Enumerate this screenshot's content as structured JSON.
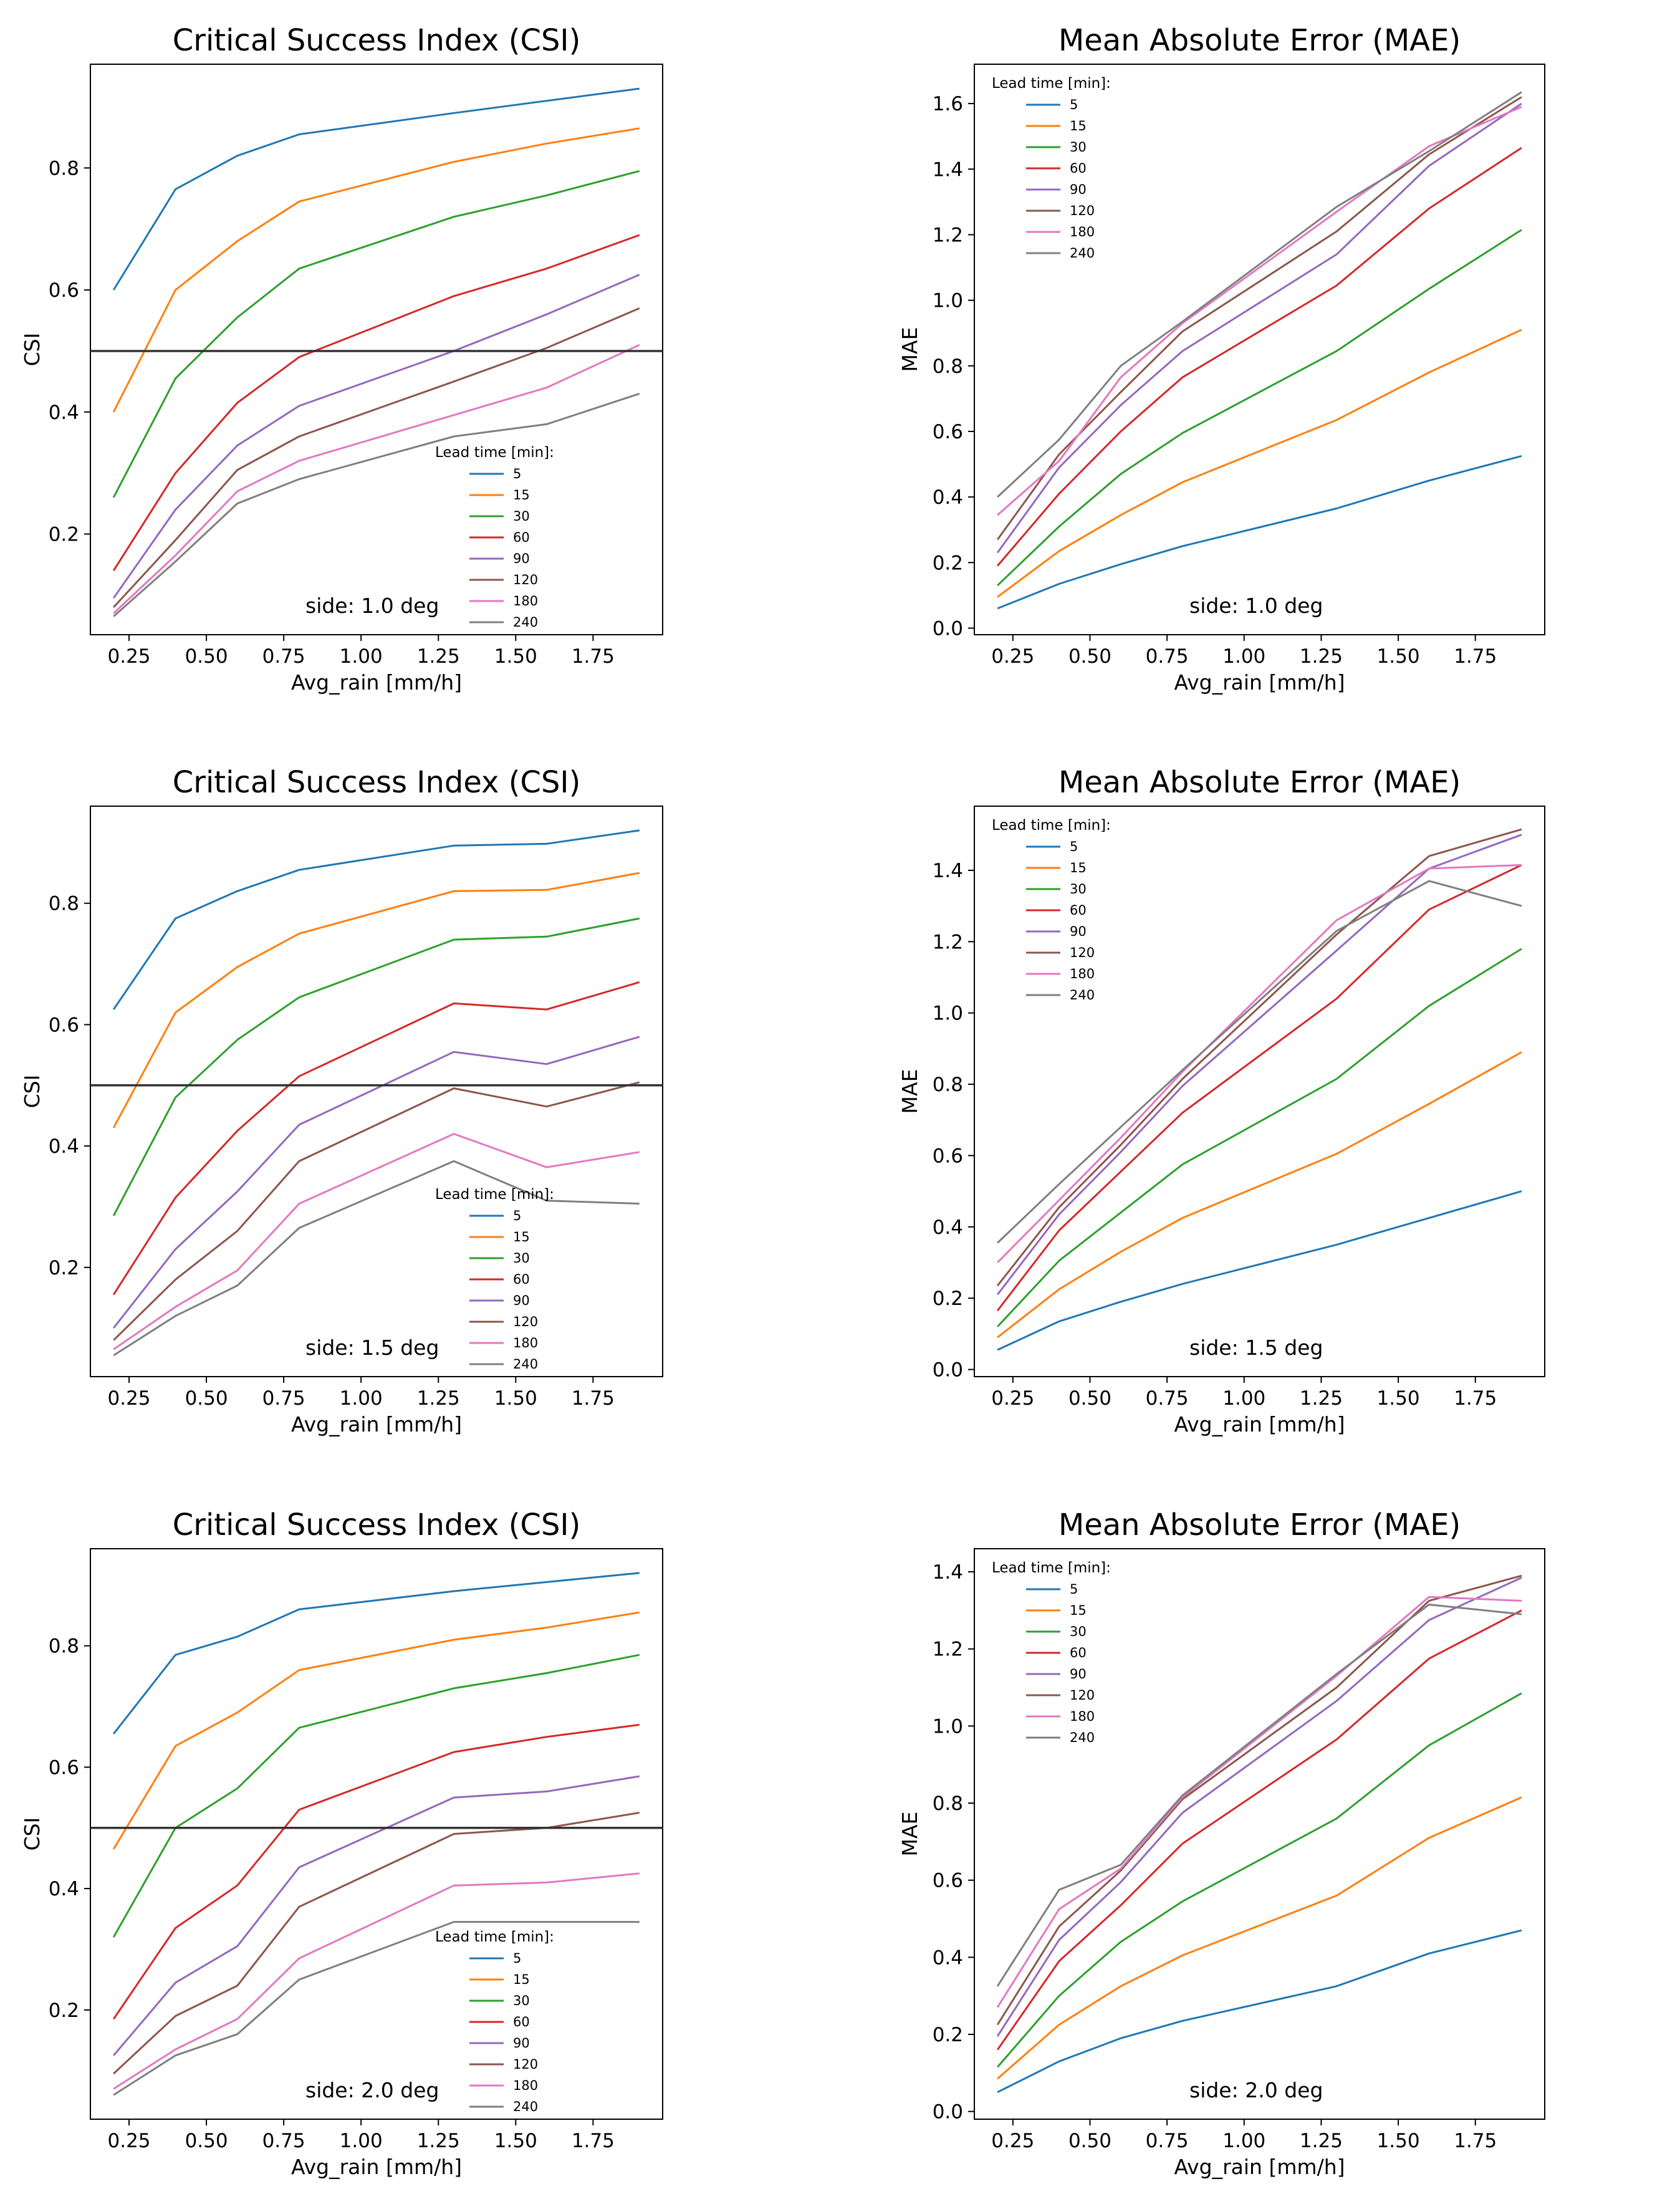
{
  "colors": {
    "series": [
      "#1f77b4",
      "#ff7f0e",
      "#2ca02c",
      "#d62728",
      "#9467bd",
      "#8c564b",
      "#e377c2",
      "#7f7f7f"
    ],
    "axis": "#000000",
    "threshold": "#333333"
  },
  "chart_data": [
    {
      "type": "line",
      "title": "Critical Success Index (CSI)",
      "xlabel": "Avg_rain [mm/h]",
      "ylabel": "CSI",
      "xlim": [
        0.125,
        1.975
      ],
      "ylim": [
        0.035,
        0.97
      ],
      "xticks": [
        0.25,
        0.5,
        0.75,
        1.0,
        1.25,
        1.5,
        1.75
      ],
      "xtick_labels": [
        "0.25",
        "0.50",
        "0.75",
        "1.00",
        "1.25",
        "1.50",
        "1.75"
      ],
      "yticks": [
        0.2,
        0.4,
        0.6,
        0.8
      ],
      "ytick_labels": [
        "0.2",
        "0.4",
        "0.6",
        "0.8"
      ],
      "threshold": 0.5,
      "legend_title": "Lead time [min]:",
      "legend_position": "lower-right",
      "annotation": "side: 1.0 deg",
      "x": [
        0.2,
        0.4,
        0.6,
        0.8,
        1.3,
        1.6,
        1.9
      ],
      "series": [
        {
          "name": "5",
          "values": [
            0.6,
            0.765,
            0.82,
            0.855,
            0.89,
            0.91,
            0.93
          ]
        },
        {
          "name": "15",
          "values": [
            0.4,
            0.6,
            0.68,
            0.745,
            0.81,
            0.84,
            0.865
          ]
        },
        {
          "name": "30",
          "values": [
            0.26,
            0.455,
            0.555,
            0.635,
            0.72,
            0.755,
            0.795
          ]
        },
        {
          "name": "60",
          "values": [
            0.14,
            0.3,
            0.415,
            0.49,
            0.59,
            0.635,
            0.69
          ]
        },
        {
          "name": "90",
          "values": [
            0.095,
            0.24,
            0.345,
            0.41,
            0.5,
            0.56,
            0.625
          ]
        },
        {
          "name": "120",
          "values": [
            0.08,
            0.19,
            0.305,
            0.36,
            0.45,
            0.505,
            0.57
          ]
        },
        {
          "name": "180",
          "values": [
            0.07,
            0.165,
            0.27,
            0.32,
            0.395,
            0.44,
            0.51
          ]
        },
        {
          "name": "240",
          "values": [
            0.065,
            0.155,
            0.25,
            0.29,
            0.36,
            0.38,
            0.43
          ]
        }
      ]
    },
    {
      "type": "line",
      "title": "Mean Absolute Error (MAE)",
      "xlabel": "Avg_rain [mm/h]",
      "ylabel": "MAE",
      "xlim": [
        0.125,
        1.975
      ],
      "ylim": [
        -0.02,
        1.72
      ],
      "xticks": [
        0.25,
        0.5,
        0.75,
        1.0,
        1.25,
        1.5,
        1.75
      ],
      "xtick_labels": [
        "0.25",
        "0.50",
        "0.75",
        "1.00",
        "1.25",
        "1.50",
        "1.75"
      ],
      "yticks": [
        0.0,
        0.2,
        0.4,
        0.6,
        0.8,
        1.0,
        1.2,
        1.4,
        1.6
      ],
      "ytick_labels": [
        "0.0",
        "0.2",
        "0.4",
        "0.6",
        "0.8",
        "1.0",
        "1.2",
        "1.4",
        "1.6"
      ],
      "legend_title": "Lead time [min]:",
      "legend_position": "upper-left",
      "annotation": "side: 1.0 deg",
      "x": [
        0.2,
        0.4,
        0.6,
        0.8,
        1.3,
        1.6,
        1.9
      ],
      "series": [
        {
          "name": "5",
          "values": [
            0.06,
            0.135,
            0.195,
            0.25,
            0.365,
            0.45,
            0.525
          ]
        },
        {
          "name": "15",
          "values": [
            0.095,
            0.235,
            0.345,
            0.445,
            0.635,
            0.78,
            0.91
          ]
        },
        {
          "name": "30",
          "values": [
            0.13,
            0.31,
            0.47,
            0.595,
            0.845,
            1.035,
            1.215
          ]
        },
        {
          "name": "60",
          "values": [
            0.19,
            0.41,
            0.6,
            0.765,
            1.045,
            1.28,
            1.465
          ]
        },
        {
          "name": "90",
          "values": [
            0.23,
            0.49,
            0.68,
            0.845,
            1.14,
            1.41,
            1.6
          ]
        },
        {
          "name": "120",
          "values": [
            0.27,
            0.53,
            0.72,
            0.905,
            1.21,
            1.445,
            1.62
          ]
        },
        {
          "name": "180",
          "values": [
            0.345,
            0.51,
            0.765,
            0.93,
            1.27,
            1.47,
            1.59
          ]
        },
        {
          "name": "240",
          "values": [
            0.4,
            0.575,
            0.8,
            0.935,
            1.285,
            1.455,
            1.635
          ]
        }
      ]
    },
    {
      "type": "line",
      "title": "Critical Success Index (CSI)",
      "xlabel": "Avg_rain [mm/h]",
      "ylabel": "CSI",
      "xlim": [
        0.125,
        1.975
      ],
      "ylim": [
        0.02,
        0.96
      ],
      "xticks": [
        0.25,
        0.5,
        0.75,
        1.0,
        1.25,
        1.5,
        1.75
      ],
      "xtick_labels": [
        "0.25",
        "0.50",
        "0.75",
        "1.00",
        "1.25",
        "1.50",
        "1.75"
      ],
      "yticks": [
        0.2,
        0.4,
        0.6,
        0.8
      ],
      "ytick_labels": [
        "0.2",
        "0.4",
        "0.6",
        "0.8"
      ],
      "threshold": 0.5,
      "legend_title": "Lead time [min]:",
      "legend_position": "lower-right",
      "annotation": "side: 1.5 deg",
      "x": [
        0.2,
        0.4,
        0.6,
        0.8,
        1.3,
        1.6,
        1.9
      ],
      "series": [
        {
          "name": "5",
          "values": [
            0.625,
            0.775,
            0.82,
            0.855,
            0.895,
            0.898,
            0.92
          ]
        },
        {
          "name": "15",
          "values": [
            0.43,
            0.62,
            0.695,
            0.75,
            0.82,
            0.822,
            0.85
          ]
        },
        {
          "name": "30",
          "values": [
            0.285,
            0.48,
            0.575,
            0.645,
            0.74,
            0.745,
            0.775
          ]
        },
        {
          "name": "60",
          "values": [
            0.155,
            0.315,
            0.425,
            0.515,
            0.635,
            0.625,
            0.67
          ]
        },
        {
          "name": "90",
          "values": [
            0.1,
            0.23,
            0.325,
            0.435,
            0.555,
            0.535,
            0.58
          ]
        },
        {
          "name": "120",
          "values": [
            0.08,
            0.18,
            0.26,
            0.375,
            0.495,
            0.465,
            0.505
          ]
        },
        {
          "name": "180",
          "values": [
            0.065,
            0.135,
            0.195,
            0.305,
            0.42,
            0.365,
            0.39
          ]
        },
        {
          "name": "240",
          "values": [
            0.055,
            0.12,
            0.17,
            0.265,
            0.375,
            0.31,
            0.305
          ]
        }
      ]
    },
    {
      "type": "line",
      "title": "Mean Absolute Error (MAE)",
      "xlabel": "Avg_rain [mm/h]",
      "ylabel": "MAE",
      "xlim": [
        0.125,
        1.975
      ],
      "ylim": [
        -0.02,
        1.58
      ],
      "xticks": [
        0.25,
        0.5,
        0.75,
        1.0,
        1.25,
        1.5,
        1.75
      ],
      "xtick_labels": [
        "0.25",
        "0.50",
        "0.75",
        "1.00",
        "1.25",
        "1.50",
        "1.75"
      ],
      "yticks": [
        0.0,
        0.2,
        0.4,
        0.6,
        0.8,
        1.0,
        1.2,
        1.4
      ],
      "ytick_labels": [
        "0.0",
        "0.2",
        "0.4",
        "0.6",
        "0.8",
        "1.0",
        "1.2",
        "1.4"
      ],
      "legend_title": "Lead time [min]:",
      "legend_position": "upper-left",
      "annotation": "side: 1.5 deg",
      "x": [
        0.2,
        0.4,
        0.6,
        0.8,
        1.3,
        1.6,
        1.9
      ],
      "series": [
        {
          "name": "5",
          "values": [
            0.055,
            0.135,
            0.19,
            0.24,
            0.35,
            0.425,
            0.5
          ]
        },
        {
          "name": "15",
          "values": [
            0.09,
            0.225,
            0.33,
            0.425,
            0.605,
            0.745,
            0.89
          ]
        },
        {
          "name": "30",
          "values": [
            0.12,
            0.305,
            0.44,
            0.575,
            0.815,
            1.02,
            1.18
          ]
        },
        {
          "name": "60",
          "values": [
            0.165,
            0.39,
            0.555,
            0.72,
            1.04,
            1.29,
            1.415
          ]
        },
        {
          "name": "90",
          "values": [
            0.21,
            0.435,
            0.61,
            0.795,
            1.175,
            1.405,
            1.5
          ]
        },
        {
          "name": "120",
          "values": [
            0.235,
            0.455,
            0.63,
            0.815,
            1.22,
            1.44,
            1.515
          ]
        },
        {
          "name": "180",
          "values": [
            0.3,
            0.475,
            0.65,
            0.835,
            1.26,
            1.405,
            1.415
          ]
        },
        {
          "name": "240",
          "values": [
            0.355,
            0.52,
            0.68,
            0.84,
            1.23,
            1.37,
            1.3
          ]
        }
      ]
    },
    {
      "type": "line",
      "title": "Critical Success Index (CSI)",
      "xlabel": "Avg_rain [mm/h]",
      "ylabel": "CSI",
      "xlim": [
        0.125,
        1.975
      ],
      "ylim": [
        0.02,
        0.96
      ],
      "xticks": [
        0.25,
        0.5,
        0.75,
        1.0,
        1.25,
        1.5,
        1.75
      ],
      "xtick_labels": [
        "0.25",
        "0.50",
        "0.75",
        "1.00",
        "1.25",
        "1.50",
        "1.75"
      ],
      "yticks": [
        0.2,
        0.4,
        0.6,
        0.8
      ],
      "ytick_labels": [
        "0.2",
        "0.4",
        "0.6",
        "0.8"
      ],
      "threshold": 0.5,
      "legend_title": "Lead time [min]:",
      "legend_position": "lower-right",
      "annotation": "side: 2.0 deg",
      "x": [
        0.2,
        0.4,
        0.6,
        0.8,
        1.3,
        1.6,
        1.9
      ],
      "series": [
        {
          "name": "5",
          "values": [
            0.655,
            0.785,
            0.815,
            0.86,
            0.89,
            0.905,
            0.92
          ]
        },
        {
          "name": "15",
          "values": [
            0.465,
            0.635,
            0.69,
            0.76,
            0.81,
            0.83,
            0.855
          ]
        },
        {
          "name": "30",
          "values": [
            0.32,
            0.5,
            0.565,
            0.665,
            0.73,
            0.755,
            0.785
          ]
        },
        {
          "name": "60",
          "values": [
            0.185,
            0.335,
            0.405,
            0.53,
            0.625,
            0.65,
            0.67
          ]
        },
        {
          "name": "90",
          "values": [
            0.125,
            0.245,
            0.305,
            0.435,
            0.55,
            0.56,
            0.585
          ]
        },
        {
          "name": "120",
          "values": [
            0.095,
            0.19,
            0.24,
            0.37,
            0.49,
            0.5,
            0.525
          ]
        },
        {
          "name": "180",
          "values": [
            0.07,
            0.135,
            0.185,
            0.285,
            0.405,
            0.41,
            0.425
          ]
        },
        {
          "name": "240",
          "values": [
            0.06,
            0.125,
            0.16,
            0.25,
            0.345,
            0.345,
            0.345
          ]
        }
      ]
    },
    {
      "type": "line",
      "title": "Mean Absolute Error (MAE)",
      "xlabel": "Avg_rain [mm/h]",
      "ylabel": "MAE",
      "xlim": [
        0.125,
        1.975
      ],
      "ylim": [
        -0.02,
        1.46
      ],
      "xticks": [
        0.25,
        0.5,
        0.75,
        1.0,
        1.25,
        1.5,
        1.75
      ],
      "xtick_labels": [
        "0.25",
        "0.50",
        "0.75",
        "1.00",
        "1.25",
        "1.50",
        "1.75"
      ],
      "yticks": [
        0.0,
        0.2,
        0.4,
        0.6,
        0.8,
        1.0,
        1.2,
        1.4
      ],
      "ytick_labels": [
        "0.0",
        "0.2",
        "0.4",
        "0.6",
        "0.8",
        "1.0",
        "1.2",
        "1.4"
      ],
      "legend_title": "Lead time [min]:",
      "legend_position": "upper-left",
      "annotation": "side: 2.0 deg",
      "x": [
        0.2,
        0.4,
        0.6,
        0.8,
        1.3,
        1.6,
        1.9
      ],
      "series": [
        {
          "name": "5",
          "values": [
            0.05,
            0.13,
            0.19,
            0.235,
            0.325,
            0.41,
            0.47
          ]
        },
        {
          "name": "15",
          "values": [
            0.085,
            0.225,
            0.325,
            0.405,
            0.56,
            0.71,
            0.815
          ]
        },
        {
          "name": "30",
          "values": [
            0.115,
            0.3,
            0.44,
            0.545,
            0.76,
            0.95,
            1.085
          ]
        },
        {
          "name": "60",
          "values": [
            0.16,
            0.39,
            0.535,
            0.695,
            0.965,
            1.175,
            1.3
          ]
        },
        {
          "name": "90",
          "values": [
            0.195,
            0.445,
            0.595,
            0.775,
            1.065,
            1.275,
            1.385
          ]
        },
        {
          "name": "120",
          "values": [
            0.225,
            0.48,
            0.625,
            0.81,
            1.1,
            1.325,
            1.39
          ]
        },
        {
          "name": "180",
          "values": [
            0.27,
            0.525,
            0.63,
            0.815,
            1.13,
            1.335,
            1.325
          ]
        },
        {
          "name": "240",
          "values": [
            0.325,
            0.575,
            0.64,
            0.82,
            1.135,
            1.315,
            1.29
          ]
        }
      ]
    }
  ]
}
